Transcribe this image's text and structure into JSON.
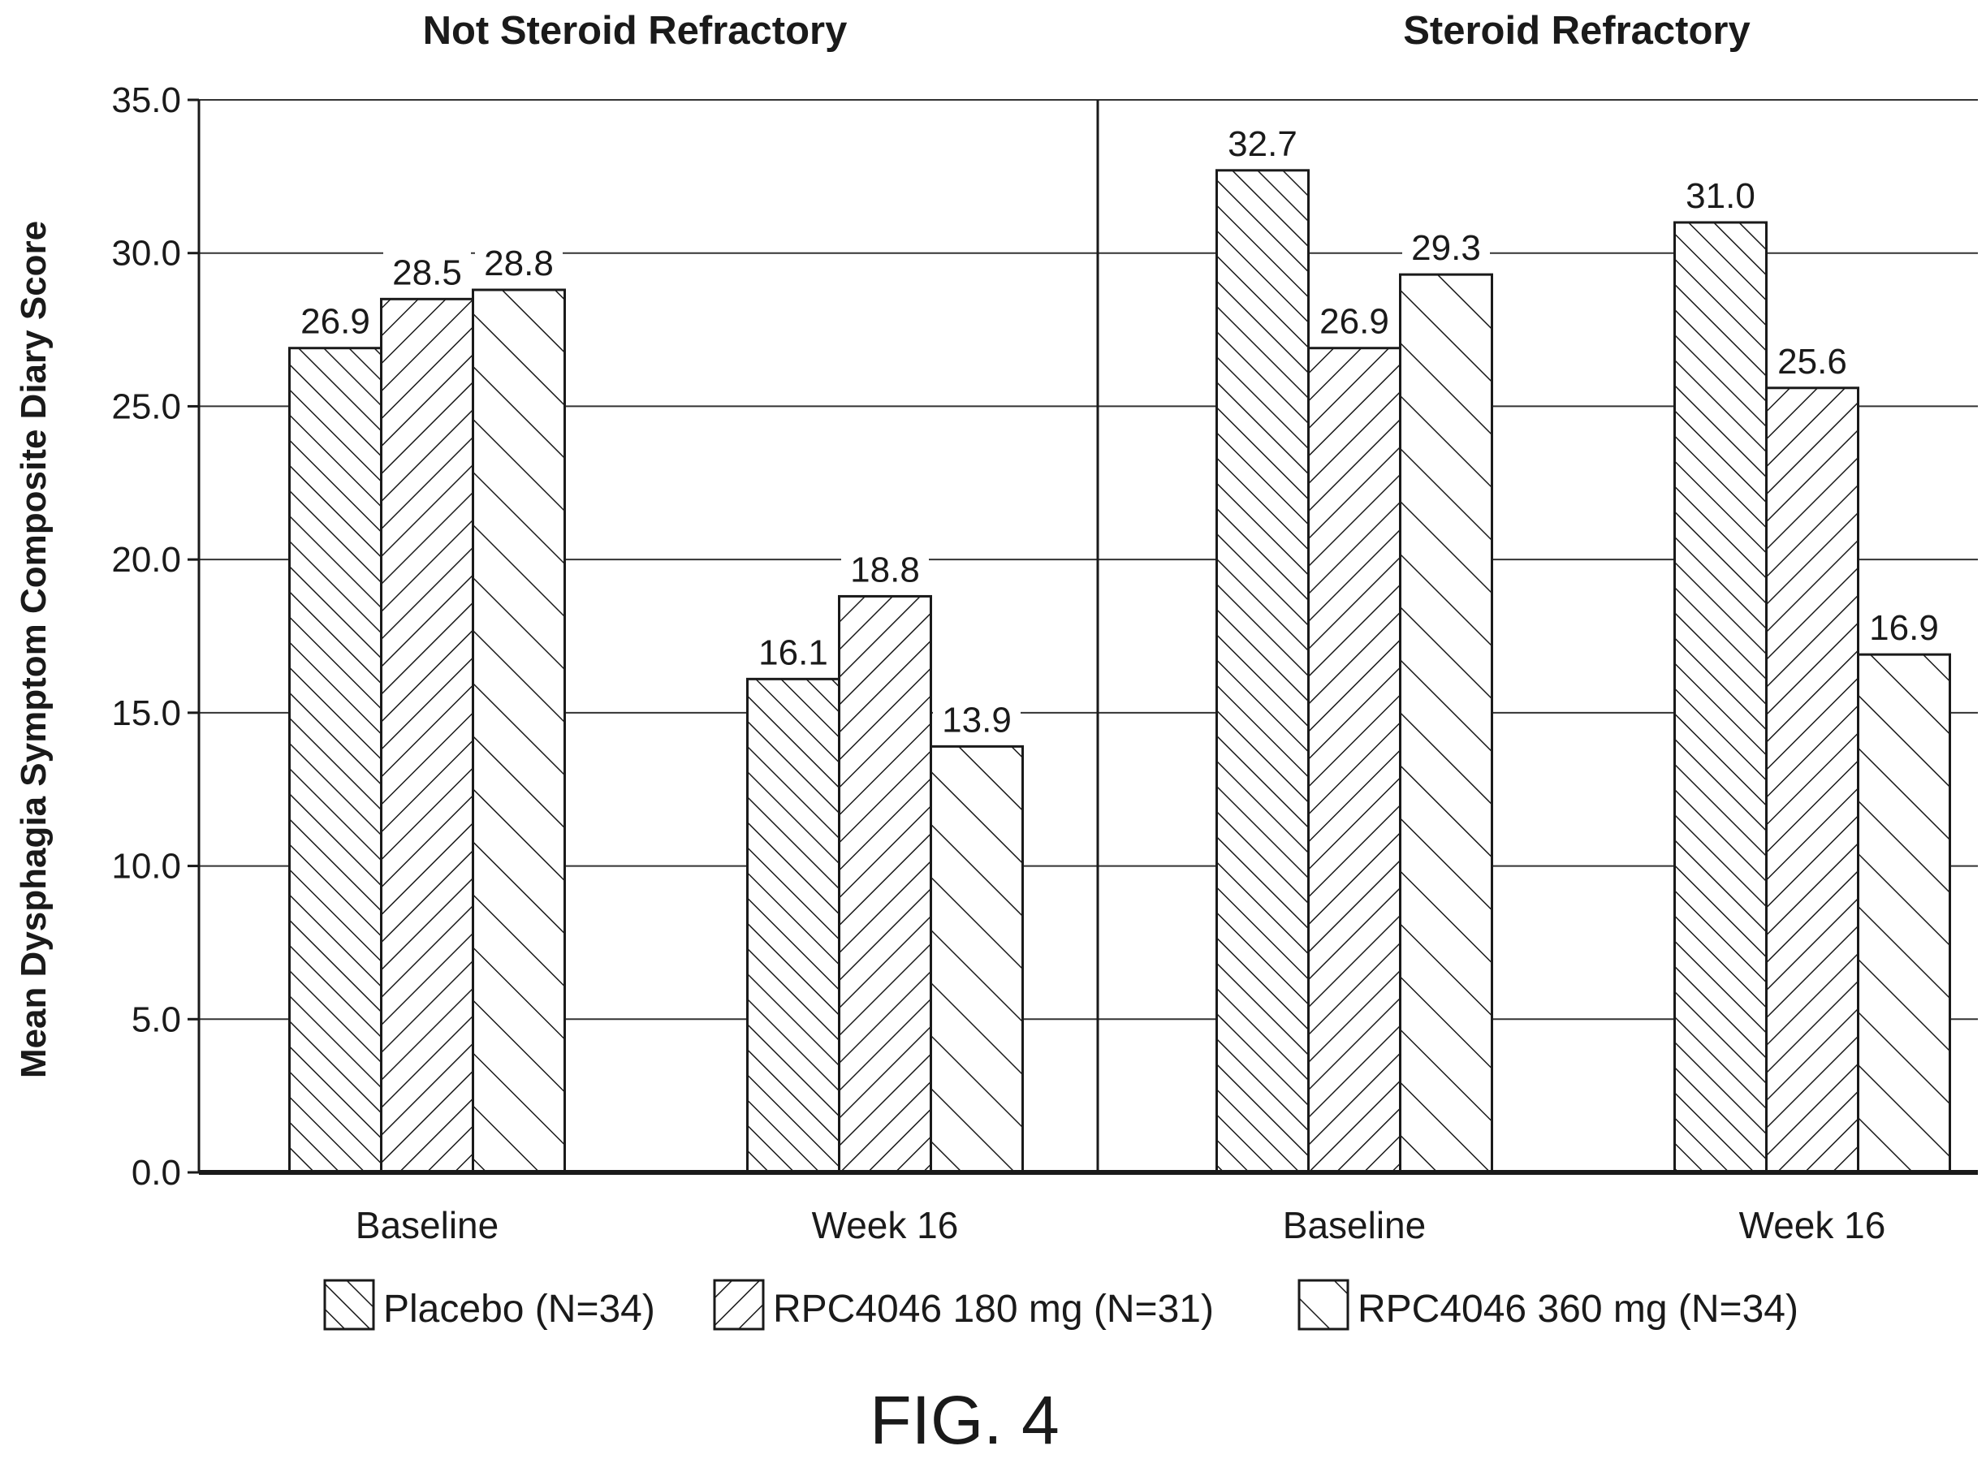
{
  "figure_caption": "FIG. 4",
  "chart_data": {
    "type": "bar",
    "ylabel": "Mean Dysphagia Symptom Composite Diary Score",
    "ylim": [
      0,
      35
    ],
    "yticks": [
      "0.0",
      "5.0",
      "10.0",
      "15.0",
      "20.0",
      "25.0",
      "30.0",
      "35.0"
    ],
    "grid": true,
    "legend_position": "bottom",
    "series": [
      {
        "name": "Placebo (N=34)",
        "pattern": "hatch-forward"
      },
      {
        "name": "RPC4046 180 mg (N=31)",
        "pattern": "hatch-backward"
      },
      {
        "name": "RPC4046 360 mg (N=34)",
        "pattern": "hatch-forward-wide"
      }
    ],
    "panels": [
      {
        "title": "Not Steroid Refractory",
        "categories": [
          "Baseline",
          "Week 16"
        ],
        "values": [
          [
            26.9,
            28.5,
            28.8
          ],
          [
            16.1,
            18.8,
            13.9
          ]
        ],
        "labels": [
          [
            "26.9",
            "28.5",
            "28.8"
          ],
          [
            "16.1",
            "18.8",
            "13.9"
          ]
        ]
      },
      {
        "title": "Steroid Refractory",
        "categories": [
          "Baseline",
          "Week 16"
        ],
        "values": [
          [
            32.7,
            26.9,
            29.3
          ],
          [
            31.0,
            25.6,
            16.9
          ]
        ],
        "labels": [
          [
            "32.7",
            "26.9",
            "29.3"
          ],
          [
            "31.0",
            "25.6",
            "16.9"
          ]
        ]
      }
    ]
  }
}
